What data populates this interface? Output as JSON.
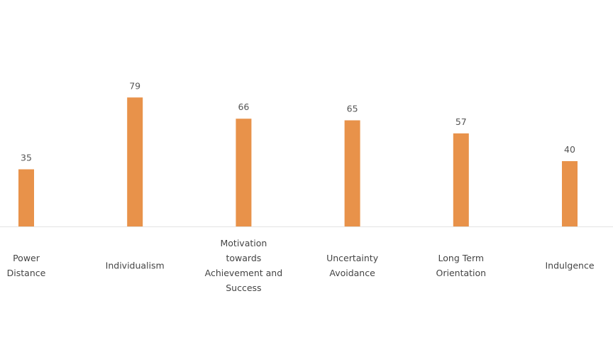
{
  "chart_data": {
    "type": "bar",
    "categories": [
      "Power Distance",
      "Individualism",
      "Motivation towards Achievement and Success",
      "Uncertainty Avoidance",
      "Long Term Orientation",
      "Indulgence"
    ],
    "values": [
      35,
      79,
      66,
      65,
      57,
      40
    ],
    "color": "#e8924a",
    "ylim": [
      0,
      100
    ]
  }
}
